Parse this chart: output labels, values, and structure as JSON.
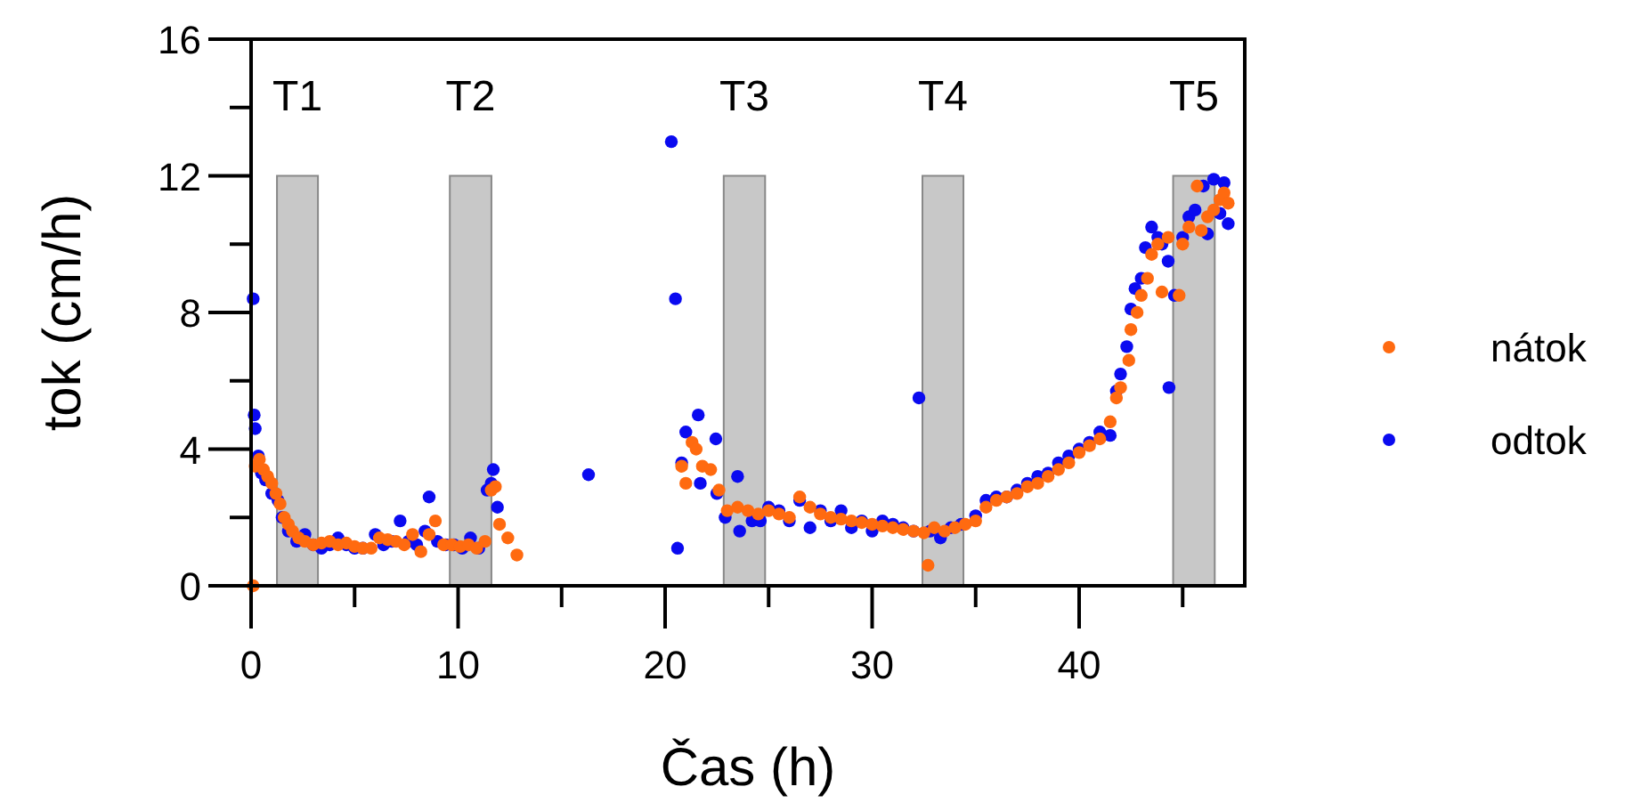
{
  "chart_data": {
    "type": "scatter",
    "xlabel": "Čas (h)",
    "ylabel": "tok (cm/h)",
    "xlim": [
      0,
      48
    ],
    "xticks": [
      0,
      {
        "value": 5,
        "label": null
      },
      10,
      {
        "value": 15,
        "label": null
      },
      20,
      {
        "value": 25,
        "label": null
      },
      30,
      {
        "value": 35,
        "label": null
      },
      40,
      {
        "value": 45,
        "label": null
      }
    ],
    "ylim": [
      0,
      16
    ],
    "yticks": [
      0,
      {
        "value": 2,
        "label": null
      },
      4,
      {
        "value": 6,
        "label": null
      },
      8,
      {
        "value": 10,
        "label": null
      },
      12,
      {
        "value": 14,
        "label": null
      },
      16
    ],
    "grid": false,
    "legend": "right",
    "marker": "circle",
    "bands": [
      {
        "axis": "x",
        "from": 1.25,
        "to": 3.23,
        "label": "T1",
        "color": "#c8c8c8"
      },
      {
        "axis": "x",
        "from": 9.6,
        "to": 11.61,
        "label": "T2",
        "color": "#c8c8c8"
      },
      {
        "axis": "x",
        "from": 22.83,
        "to": 24.83,
        "label": "T3",
        "color": "#c8c8c8"
      },
      {
        "axis": "x",
        "from": 32.43,
        "to": 34.41,
        "label": "T4",
        "color": "#c8c8c8"
      },
      {
        "axis": "x",
        "from": 44.54,
        "to": 46.55,
        "label": "T5",
        "color": "#c8c8c8"
      }
    ],
    "series": [
      {
        "name": "odtok",
        "color": "#0a0af0",
        "x": [
          0.1,
          0.15,
          0.2,
          0.35,
          0.5,
          0.7,
          1.0,
          1.3,
          1.5,
          1.8,
          2.2,
          2.6,
          3.0,
          3.4,
          3.8,
          4.2,
          4.6,
          5.0,
          5.4,
          6.0,
          6.4,
          6.8,
          7.2,
          7.6,
          8.0,
          8.4,
          8.6,
          9.0,
          9.4,
          9.8,
          10.2,
          10.6,
          11.0,
          11.4,
          11.6,
          11.7,
          11.9,
          16.3,
          20.3,
          20.5,
          20.6,
          20.8,
          21.0,
          21.6,
          21.7,
          22.45,
          22.5,
          22.9,
          23.5,
          23.6,
          24.2,
          24.6,
          25.0,
          25.5,
          26.0,
          26.5,
          27.0,
          27.5,
          28.0,
          28.5,
          29.0,
          29.5,
          30.0,
          30.5,
          31.0,
          31.5,
          32.0,
          32.26,
          32.8,
          33.3,
          33.8,
          34.3,
          35.0,
          35.5,
          36.0,
          36.5,
          37.0,
          37.5,
          38.0,
          38.5,
          39.0,
          39.5,
          40.0,
          40.5,
          41.0,
          41.5,
          41.8,
          42.0,
          42.3,
          42.5,
          42.7,
          43.0,
          43.2,
          43.5,
          43.8,
          44.0,
          44.3,
          44.34,
          44.6,
          45.0,
          45.3,
          45.6,
          46.0,
          46.2,
          46.5,
          46.8,
          47.0,
          47.2
        ],
        "values": [
          8.4,
          5.0,
          4.6,
          3.8,
          3.3,
          3.1,
          2.7,
          2.5,
          2.0,
          1.6,
          1.3,
          1.5,
          1.2,
          1.1,
          1.2,
          1.4,
          1.2,
          1.1,
          1.1,
          1.5,
          1.2,
          1.3,
          1.9,
          1.3,
          1.2,
          1.6,
          2.6,
          1.3,
          1.2,
          1.2,
          1.1,
          1.4,
          1.1,
          2.8,
          3.0,
          3.4,
          2.3,
          3.25,
          13.0,
          8.4,
          1.1,
          3.6,
          4.5,
          5.0,
          3.0,
          4.3,
          2.7,
          2.0,
          3.2,
          1.6,
          1.9,
          1.9,
          2.3,
          2.2,
          1.9,
          2.5,
          1.7,
          2.2,
          1.9,
          2.2,
          1.7,
          1.9,
          1.6,
          1.9,
          1.8,
          1.7,
          1.6,
          5.5,
          1.6,
          1.4,
          1.7,
          1.8,
          2.05,
          2.5,
          2.6,
          2.6,
          2.8,
          3.0,
          3.2,
          3.3,
          3.6,
          3.8,
          4.0,
          4.2,
          4.5,
          4.4,
          5.7,
          6.2,
          7.0,
          8.1,
          8.7,
          9.0,
          9.9,
          10.5,
          10.2,
          10.0,
          9.5,
          5.8,
          8.5,
          10.2,
          10.8,
          11.0,
          11.7,
          10.3,
          11.9,
          10.9,
          11.8,
          10.6
        ]
      },
      {
        "name": "nátok",
        "color": "#ff6a10",
        "x": [
          0.1,
          0.2,
          0.4,
          0.6,
          0.8,
          1.0,
          1.2,
          1.4,
          1.6,
          1.8,
          2.0,
          2.3,
          2.6,
          3.0,
          3.4,
          3.8,
          4.2,
          4.6,
          5.0,
          5.4,
          5.8,
          6.2,
          6.6,
          7.0,
          7.4,
          7.8,
          8.2,
          8.6,
          8.9,
          9.3,
          9.7,
          10.1,
          10.5,
          10.9,
          11.3,
          11.6,
          11.8,
          12.0,
          12.4,
          12.84,
          20.8,
          21.0,
          21.3,
          21.5,
          21.8,
          22.2,
          22.6,
          23.0,
          23.5,
          24.0,
          24.5,
          25.0,
          25.5,
          26.0,
          26.5,
          27.0,
          27.5,
          28.0,
          28.5,
          29.0,
          29.5,
          30.0,
          30.5,
          31.0,
          31.5,
          32.0,
          32.5,
          32.7,
          33.0,
          33.5,
          34.0,
          34.5,
          35.0,
          35.5,
          36.0,
          36.5,
          37.0,
          37.5,
          38.0,
          38.5,
          39.0,
          39.5,
          40.0,
          40.5,
          41.0,
          41.5,
          41.8,
          42.0,
          42.4,
          42.5,
          42.8,
          43.0,
          43.3,
          43.5,
          43.8,
          44.0,
          44.3,
          44.83,
          45.0,
          45.3,
          45.7,
          45.9,
          46.2,
          46.5,
          46.8,
          47.0,
          47.2
        ],
        "values": [
          0,
          3.5,
          3.7,
          3.4,
          3.2,
          3.0,
          2.7,
          2.4,
          2.0,
          1.8,
          1.6,
          1.4,
          1.3,
          1.2,
          1.25,
          1.3,
          1.2,
          1.25,
          1.15,
          1.1,
          1.1,
          1.4,
          1.35,
          1.3,
          1.2,
          1.5,
          1.0,
          1.5,
          1.9,
          1.2,
          1.2,
          1.15,
          1.2,
          1.1,
          1.3,
          2.8,
          2.9,
          1.8,
          1.4,
          0.9,
          3.5,
          3.0,
          4.2,
          4.0,
          3.5,
          3.4,
          2.8,
          2.2,
          2.3,
          2.2,
          2.1,
          2.2,
          2.1,
          2.0,
          2.6,
          2.3,
          2.1,
          2.0,
          1.95,
          1.9,
          1.85,
          1.8,
          1.75,
          1.7,
          1.65,
          1.6,
          1.55,
          0.6,
          1.7,
          1.6,
          1.7,
          1.8,
          1.9,
          2.3,
          2.5,
          2.6,
          2.7,
          2.9,
          3.0,
          3.2,
          3.4,
          3.6,
          3.9,
          4.1,
          4.3,
          4.8,
          5.5,
          5.8,
          6.6,
          7.5,
          8.0,
          8.5,
          9.0,
          9.7,
          10.0,
          8.6,
          10.2,
          8.5,
          10.0,
          10.5,
          11.7,
          10.4,
          10.8,
          11.0,
          11.3,
          11.5,
          11.2
        ]
      }
    ]
  }
}
